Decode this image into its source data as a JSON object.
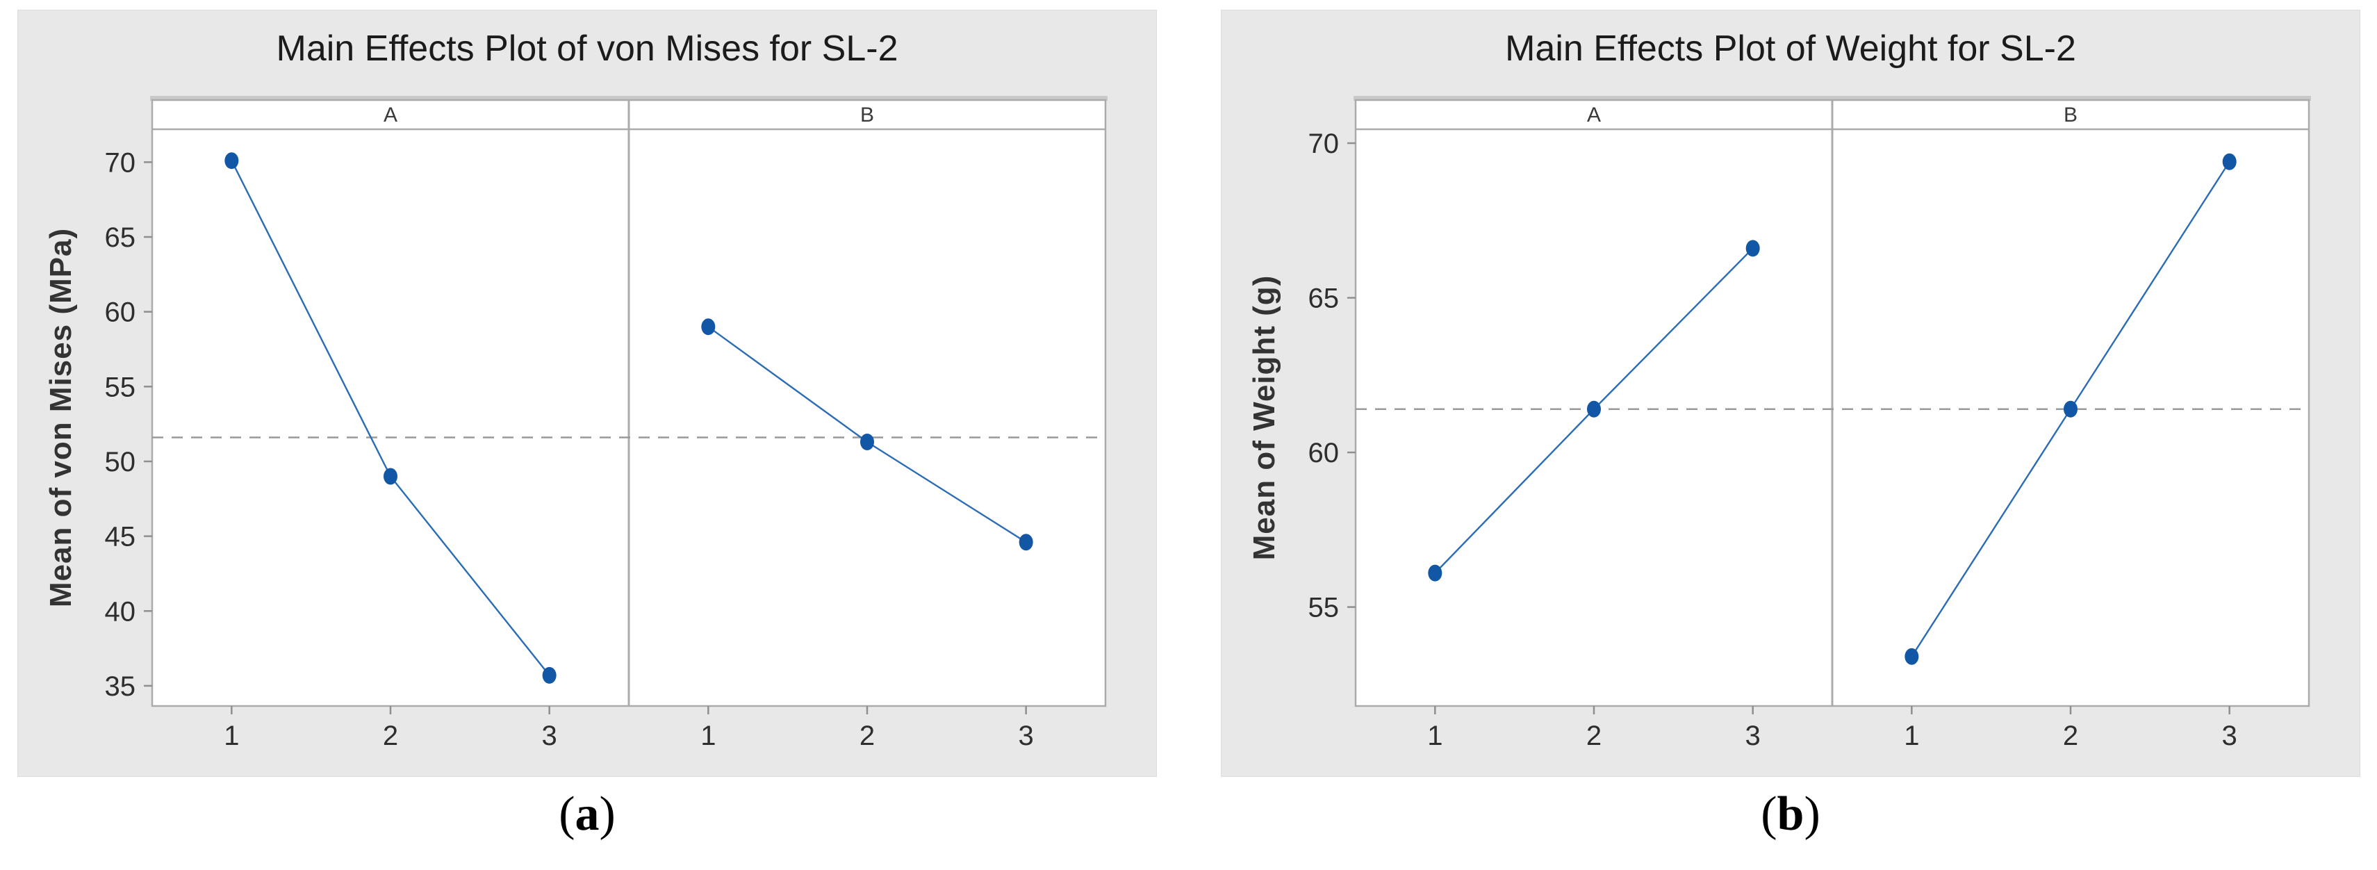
{
  "colors": {
    "figure_background": "#e8e8e8",
    "plot_background": "#ffffff",
    "frame": "#ababab",
    "header_shade": "#c9c9c9",
    "series_line": "#2a6cb5",
    "series_point": "#1256a6",
    "mean_line": "#9a9a9a",
    "tick_mark": "#8f8f8f",
    "tick_text": "#2e2e2e",
    "panel_text": "#3a3a3a",
    "title_text": "#1b1b1b"
  },
  "chart_data": [
    {
      "type": "line",
      "title": "Main Effects Plot of von Mises for SL-2",
      "ylabel": "Mean of von Mises (MPa)",
      "xlabel": "",
      "panels": [
        {
          "label": "A",
          "x": [
            1,
            2,
            3
          ],
          "y": [
            70.1,
            49.0,
            35.7
          ]
        },
        {
          "label": "B",
          "x": [
            1,
            2,
            3
          ],
          "y": [
            59.0,
            51.3,
            44.6
          ]
        }
      ],
      "overall_mean_line": 51.6,
      "yticks": [
        35,
        40,
        45,
        50,
        55,
        60,
        65,
        70
      ],
      "ylim": [
        33.65,
        72.2
      ],
      "xticklabels": [
        "1",
        "2",
        "3"
      ],
      "grid": false,
      "legend": "none",
      "caption_parts": {
        "open": "(",
        "letter": "a",
        "close": ")"
      }
    },
    {
      "type": "line",
      "title": "Main Effects Plot of Weight for SL-2",
      "ylabel": "Mean of Weight (g)",
      "xlabel": "",
      "panels": [
        {
          "label": "A",
          "x": [
            1,
            2,
            3
          ],
          "y": [
            56.1,
            61.4,
            66.6
          ]
        },
        {
          "label": "B",
          "x": [
            1,
            2,
            3
          ],
          "y": [
            53.4,
            61.4,
            69.4
          ]
        }
      ],
      "overall_mean_line": 61.4,
      "yticks": [
        55,
        60,
        65,
        70
      ],
      "ylim": [
        51.8,
        70.45
      ],
      "xticklabels": [
        "1",
        "2",
        "3"
      ],
      "grid": false,
      "legend": "none",
      "caption_parts": {
        "open": "(",
        "letter": "b",
        "close": ")"
      }
    }
  ]
}
